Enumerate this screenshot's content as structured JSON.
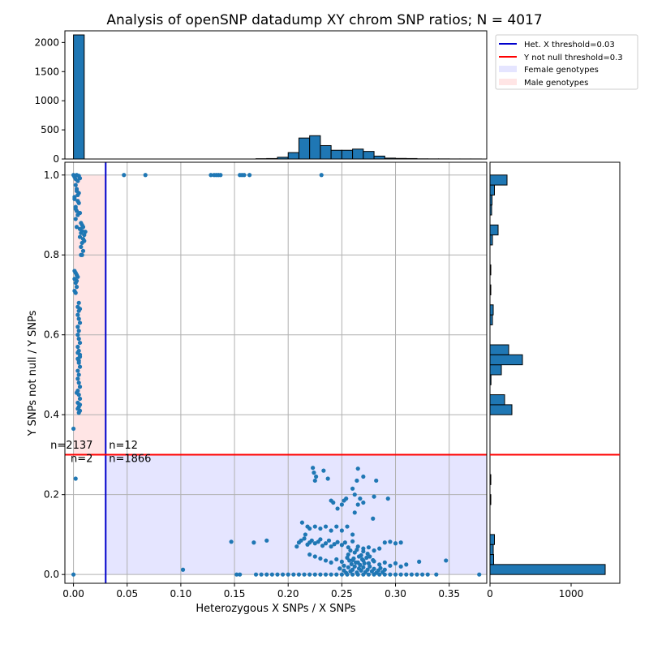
{
  "chart_data": {
    "type": "scatter",
    "title": "Analysis of openSNP datadump XY chrom SNP ratios; N = 4017",
    "xlabel": "Heterozygous X SNPs / X SNPs",
    "ylabel": "Y SNPs not null / Y SNPs",
    "xlim": [
      -0.008,
      0.385
    ],
    "ylim": [
      -0.022,
      1.032
    ],
    "grid": true,
    "x_ticks": [
      "0.00",
      "0.05",
      "0.10",
      "0.15",
      "0.20",
      "0.25",
      "0.30",
      "0.35"
    ],
    "y_ticks": [
      "0.0",
      "0.2",
      "0.4",
      "0.6",
      "0.8",
      "1.0"
    ],
    "point_color": "#1f77b4",
    "thresholds": {
      "het_x": {
        "label": "Het. X threshold=0.03",
        "value": 0.03,
        "color": "#0000cc"
      },
      "y_not_null": {
        "label": "Y not null threshold=0.3",
        "value": 0.3,
        "color": "#ff0000"
      }
    },
    "regions": [
      {
        "label": "Female genotypes",
        "color": "#e5e5ff"
      },
      {
        "label": "Male genotypes",
        "color": "#ffe5e5"
      }
    ],
    "legend_position": "top-right",
    "quadrant_counts": [
      {
        "text": "n=2137",
        "x": 0.018,
        "y": 0.315
      },
      {
        "text": "n=12",
        "x": 0.033,
        "y": 0.315
      },
      {
        "text": "n=2",
        "x": 0.018,
        "y": 0.282
      },
      {
        "text": "n=1866",
        "x": 0.033,
        "y": 0.282
      }
    ],
    "top_histogram": {
      "ylim": [
        0,
        2200
      ],
      "y_ticks": [
        "0",
        "500",
        "1000",
        "1500",
        "2000"
      ],
      "bins": [
        {
          "x0": 0.0,
          "x1": 0.01,
          "count": 2130
        },
        {
          "x0": 0.17,
          "x1": 0.18,
          "count": 5
        },
        {
          "x0": 0.18,
          "x1": 0.19,
          "count": 8
        },
        {
          "x0": 0.19,
          "x1": 0.2,
          "count": 30
        },
        {
          "x0": 0.2,
          "x1": 0.21,
          "count": 110
        },
        {
          "x0": 0.21,
          "x1": 0.22,
          "count": 360
        },
        {
          "x0": 0.22,
          "x1": 0.23,
          "count": 400
        },
        {
          "x0": 0.23,
          "x1": 0.24,
          "count": 230
        },
        {
          "x0": 0.24,
          "x1": 0.25,
          "count": 150
        },
        {
          "x0": 0.25,
          "x1": 0.26,
          "count": 150
        },
        {
          "x0": 0.26,
          "x1": 0.27,
          "count": 170
        },
        {
          "x0": 0.27,
          "x1": 0.28,
          "count": 130
        },
        {
          "x0": 0.28,
          "x1": 0.29,
          "count": 50
        },
        {
          "x0": 0.29,
          "x1": 0.3,
          "count": 15
        },
        {
          "x0": 0.3,
          "x1": 0.31,
          "count": 10
        },
        {
          "x0": 0.31,
          "x1": 0.32,
          "count": 8
        },
        {
          "x0": 0.32,
          "x1": 0.33,
          "count": 3
        },
        {
          "x0": 0.33,
          "x1": 0.34,
          "count": 2
        },
        {
          "x0": 0.34,
          "x1": 0.35,
          "count": 2
        },
        {
          "x0": 0.35,
          "x1": 0.36,
          "count": 1
        },
        {
          "x0": 0.36,
          "x1": 0.37,
          "count": 1
        },
        {
          "x0": 0.37,
          "x1": 0.38,
          "count": 1
        }
      ]
    },
    "right_histogram": {
      "xlim": [
        0,
        1600
      ],
      "x_ticks": [
        "0",
        "1000"
      ],
      "bins": [
        {
          "y0": 0.0,
          "y1": 0.025,
          "count": 1420
        },
        {
          "y0": 0.025,
          "y1": 0.05,
          "count": 45
        },
        {
          "y0": 0.05,
          "y1": 0.075,
          "count": 40
        },
        {
          "y0": 0.075,
          "y1": 0.1,
          "count": 55
        },
        {
          "y0": 0.175,
          "y1": 0.2,
          "count": 10
        },
        {
          "y0": 0.225,
          "y1": 0.25,
          "count": 10
        },
        {
          "y0": 0.4,
          "y1": 0.425,
          "count": 270
        },
        {
          "y0": 0.425,
          "y1": 0.45,
          "count": 180
        },
        {
          "y0": 0.475,
          "y1": 0.5,
          "count": 12
        },
        {
          "y0": 0.5,
          "y1": 0.525,
          "count": 140
        },
        {
          "y0": 0.525,
          "y1": 0.55,
          "count": 400
        },
        {
          "y0": 0.55,
          "y1": 0.575,
          "count": 230
        },
        {
          "y0": 0.625,
          "y1": 0.65,
          "count": 30
        },
        {
          "y0": 0.65,
          "y1": 0.675,
          "count": 40
        },
        {
          "y0": 0.7,
          "y1": 0.725,
          "count": 10
        },
        {
          "y0": 0.75,
          "y1": 0.775,
          "count": 10
        },
        {
          "y0": 0.825,
          "y1": 0.85,
          "count": 30
        },
        {
          "y0": 0.85,
          "y1": 0.875,
          "count": 100
        },
        {
          "y0": 0.9,
          "y1": 0.925,
          "count": 20
        },
        {
          "y0": 0.925,
          "y1": 0.95,
          "count": 25
        },
        {
          "y0": 0.95,
          "y1": 0.975,
          "count": 55
        },
        {
          "y0": 0.975,
          "y1": 1.0,
          "count": 210
        }
      ]
    },
    "points": [
      [
        0.0,
        1.0
      ],
      [
        0.001,
        0.995
      ],
      [
        0.002,
        0.99
      ],
      [
        0.003,
        1.0
      ],
      [
        0.004,
        0.985
      ],
      [
        0.005,
        0.998
      ],
      [
        0.006,
        0.992
      ],
      [
        0.002,
        0.975
      ],
      [
        0.003,
        0.96
      ],
      [
        0.004,
        0.95
      ],
      [
        0.001,
        0.94
      ],
      [
        0.005,
        0.93
      ],
      [
        0.002,
        0.92
      ],
      [
        0.003,
        0.91
      ],
      [
        0.004,
        0.9
      ],
      [
        0.002,
        0.89
      ],
      [
        0.001,
        0.945
      ],
      [
        0.003,
        0.965
      ],
      [
        0.005,
        0.955
      ],
      [
        0.004,
        0.935
      ],
      [
        0.002,
        0.915
      ],
      [
        0.006,
        0.905
      ],
      [
        0.007,
        0.88
      ],
      [
        0.008,
        0.875
      ],
      [
        0.009,
        0.87
      ],
      [
        0.006,
        0.865
      ],
      [
        0.008,
        0.86
      ],
      [
        0.007,
        0.855
      ],
      [
        0.01,
        0.85
      ],
      [
        0.009,
        0.84
      ],
      [
        0.008,
        0.83
      ],
      [
        0.007,
        0.82
      ],
      [
        0.009,
        0.81
      ],
      [
        0.006,
        0.845
      ],
      [
        0.01,
        0.835
      ],
      [
        0.008,
        0.8
      ],
      [
        0.007,
        0.8
      ],
      [
        0.011,
        0.858
      ],
      [
        0.003,
        0.87
      ],
      [
        0.001,
        0.76
      ],
      [
        0.002,
        0.755
      ],
      [
        0.003,
        0.75
      ],
      [
        0.001,
        0.74
      ],
      [
        0.002,
        0.73
      ],
      [
        0.003,
        0.72
      ],
      [
        0.001,
        0.71
      ],
      [
        0.002,
        0.705
      ],
      [
        0.004,
        0.745
      ],
      [
        0.003,
        0.735
      ],
      [
        0.005,
        0.68
      ],
      [
        0.004,
        0.67
      ],
      [
        0.006,
        0.665
      ],
      [
        0.005,
        0.66
      ],
      [
        0.004,
        0.65
      ],
      [
        0.005,
        0.64
      ],
      [
        0.006,
        0.63
      ],
      [
        0.004,
        0.62
      ],
      [
        0.005,
        0.61
      ],
      [
        0.004,
        0.6
      ],
      [
        0.005,
        0.59
      ],
      [
        0.006,
        0.58
      ],
      [
        0.004,
        0.57
      ],
      [
        0.005,
        0.56
      ],
      [
        0.006,
        0.55
      ],
      [
        0.004,
        0.54
      ],
      [
        0.005,
        0.53
      ],
      [
        0.006,
        0.52
      ],
      [
        0.004,
        0.51
      ],
      [
        0.005,
        0.5
      ],
      [
        0.004,
        0.49
      ],
      [
        0.005,
        0.48
      ],
      [
        0.006,
        0.47
      ],
      [
        0.004,
        0.46
      ],
      [
        0.005,
        0.45
      ],
      [
        0.006,
        0.44
      ],
      [
        0.004,
        0.43
      ],
      [
        0.005,
        0.42
      ],
      [
        0.006,
        0.41
      ],
      [
        0.005,
        0.405
      ],
      [
        0.004,
        0.415
      ],
      [
        0.006,
        0.425
      ],
      [
        0.003,
        0.455
      ],
      [
        0.005,
        0.535
      ],
      [
        0.006,
        0.545
      ],
      [
        0.004,
        0.555
      ],
      [
        0.0,
        0.365
      ],
      [
        0.002,
        0.24
      ],
      [
        0.0,
        0.0
      ],
      [
        0.047,
        1.0
      ],
      [
        0.067,
        1.0
      ],
      [
        0.128,
        1.0
      ],
      [
        0.131,
        1.0
      ],
      [
        0.133,
        1.0
      ],
      [
        0.135,
        1.0
      ],
      [
        0.137,
        1.0
      ],
      [
        0.155,
        1.0
      ],
      [
        0.157,
        1.0
      ],
      [
        0.159,
        1.0
      ],
      [
        0.164,
        1.0
      ],
      [
        0.231,
        1.0
      ],
      [
        0.102,
        0.012
      ],
      [
        0.147,
        0.082
      ],
      [
        0.168,
        0.08
      ],
      [
        0.18,
        0.085
      ],
      [
        0.152,
        0.0
      ],
      [
        0.155,
        0.0
      ],
      [
        0.17,
        0.0
      ],
      [
        0.175,
        0.0
      ],
      [
        0.18,
        0.0
      ],
      [
        0.185,
        0.0
      ],
      [
        0.19,
        0.0
      ],
      [
        0.195,
        0.0
      ],
      [
        0.2,
        0.0
      ],
      [
        0.205,
        0.0
      ],
      [
        0.21,
        0.0
      ],
      [
        0.215,
        0.0
      ],
      [
        0.22,
        0.0
      ],
      [
        0.225,
        0.0
      ],
      [
        0.23,
        0.0
      ],
      [
        0.235,
        0.0
      ],
      [
        0.24,
        0.0
      ],
      [
        0.245,
        0.0
      ],
      [
        0.25,
        0.0
      ],
      [
        0.255,
        0.0
      ],
      [
        0.26,
        0.0
      ],
      [
        0.265,
        0.0
      ],
      [
        0.27,
        0.0
      ],
      [
        0.275,
        0.0
      ],
      [
        0.28,
        0.0
      ],
      [
        0.285,
        0.0
      ],
      [
        0.29,
        0.0
      ],
      [
        0.295,
        0.0
      ],
      [
        0.3,
        0.0
      ],
      [
        0.305,
        0.0
      ],
      [
        0.31,
        0.0
      ],
      [
        0.315,
        0.0
      ],
      [
        0.32,
        0.0
      ],
      [
        0.325,
        0.0
      ],
      [
        0.33,
        0.0
      ],
      [
        0.338,
        0.0
      ],
      [
        0.378,
        0.0
      ],
      [
        0.223,
        0.267
      ],
      [
        0.224,
        0.255
      ],
      [
        0.226,
        0.245
      ],
      [
        0.233,
        0.26
      ],
      [
        0.225,
        0.235
      ],
      [
        0.237,
        0.24
      ],
      [
        0.265,
        0.265
      ],
      [
        0.27,
        0.245
      ],
      [
        0.264,
        0.235
      ],
      [
        0.282,
        0.235
      ],
      [
        0.26,
        0.215
      ],
      [
        0.254,
        0.19
      ],
      [
        0.252,
        0.185
      ],
      [
        0.262,
        0.2
      ],
      [
        0.267,
        0.19
      ],
      [
        0.28,
        0.195
      ],
      [
        0.293,
        0.19
      ],
      [
        0.24,
        0.185
      ],
      [
        0.242,
        0.18
      ],
      [
        0.246,
        0.165
      ],
      [
        0.25,
        0.175
      ],
      [
        0.265,
        0.175
      ],
      [
        0.27,
        0.18
      ],
      [
        0.262,
        0.155
      ],
      [
        0.279,
        0.14
      ],
      [
        0.213,
        0.13
      ],
      [
        0.218,
        0.12
      ],
      [
        0.22,
        0.115
      ],
      [
        0.225,
        0.12
      ],
      [
        0.23,
        0.115
      ],
      [
        0.235,
        0.12
      ],
      [
        0.24,
        0.11
      ],
      [
        0.245,
        0.12
      ],
      [
        0.25,
        0.11
      ],
      [
        0.255,
        0.12
      ],
      [
        0.26,
        0.1
      ],
      [
        0.216,
        0.1
      ],
      [
        0.21,
        0.08
      ],
      [
        0.212,
        0.085
      ],
      [
        0.215,
        0.09
      ],
      [
        0.218,
        0.075
      ],
      [
        0.22,
        0.08
      ],
      [
        0.222,
        0.085
      ],
      [
        0.225,
        0.078
      ],
      [
        0.228,
        0.082
      ],
      [
        0.23,
        0.088
      ],
      [
        0.232,
        0.072
      ],
      [
        0.235,
        0.078
      ],
      [
        0.238,
        0.085
      ],
      [
        0.24,
        0.07
      ],
      [
        0.243,
        0.076
      ],
      [
        0.246,
        0.081
      ],
      [
        0.25,
        0.074
      ],
      [
        0.253,
        0.08
      ],
      [
        0.256,
        0.068
      ],
      [
        0.26,
        0.083
      ],
      [
        0.208,
        0.07
      ],
      [
        0.265,
        0.07
      ],
      [
        0.27,
        0.065
      ],
      [
        0.275,
        0.068
      ],
      [
        0.28,
        0.06
      ],
      [
        0.285,
        0.065
      ],
      [
        0.29,
        0.08
      ],
      [
        0.295,
        0.082
      ],
      [
        0.3,
        0.078
      ],
      [
        0.305,
        0.08
      ],
      [
        0.22,
        0.05
      ],
      [
        0.225,
        0.045
      ],
      [
        0.23,
        0.04
      ],
      [
        0.235,
        0.035
      ],
      [
        0.24,
        0.03
      ],
      [
        0.245,
        0.038
      ],
      [
        0.25,
        0.032
      ],
      [
        0.255,
        0.042
      ],
      [
        0.26,
        0.036
      ],
      [
        0.265,
        0.03
      ],
      [
        0.27,
        0.035
      ],
      [
        0.275,
        0.028
      ],
      [
        0.28,
        0.033
      ],
      [
        0.285,
        0.025
      ],
      [
        0.29,
        0.03
      ],
      [
        0.295,
        0.022
      ],
      [
        0.3,
        0.028
      ],
      [
        0.305,
        0.02
      ],
      [
        0.31,
        0.025
      ],
      [
        0.322,
        0.032
      ],
      [
        0.347,
        0.035
      ],
      [
        0.248,
        0.015
      ],
      [
        0.252,
        0.01
      ],
      [
        0.256,
        0.018
      ],
      [
        0.258,
        0.008
      ],
      [
        0.26,
        0.012
      ],
      [
        0.262,
        0.02
      ],
      [
        0.264,
        0.005
      ],
      [
        0.266,
        0.015
      ],
      [
        0.268,
        0.01
      ],
      [
        0.27,
        0.018
      ],
      [
        0.272,
        0.006
      ],
      [
        0.274,
        0.012
      ],
      [
        0.276,
        0.02
      ],
      [
        0.278,
        0.008
      ],
      [
        0.28,
        0.014
      ],
      [
        0.282,
        0.004
      ],
      [
        0.284,
        0.01
      ],
      [
        0.286,
        0.016
      ],
      [
        0.288,
        0.006
      ],
      [
        0.29,
        0.012
      ],
      [
        0.254,
        0.004
      ],
      [
        0.259,
        0.026
      ],
      [
        0.263,
        0.03
      ],
      [
        0.267,
        0.024
      ],
      [
        0.271,
        0.028
      ],
      [
        0.261,
        0.04
      ],
      [
        0.266,
        0.045
      ],
      [
        0.256,
        0.05
      ],
      [
        0.262,
        0.055
      ],
      [
        0.268,
        0.048
      ],
      [
        0.274,
        0.052
      ],
      [
        0.258,
        0.06
      ],
      [
        0.264,
        0.062
      ],
      [
        0.27,
        0.058
      ],
      [
        0.276,
        0.045
      ],
      [
        0.252,
        0.022
      ],
      [
        0.257,
        0.035
      ],
      [
        0.269,
        0.038
      ],
      [
        0.273,
        0.042
      ],
      [
        0.279,
        0.036
      ]
    ]
  }
}
